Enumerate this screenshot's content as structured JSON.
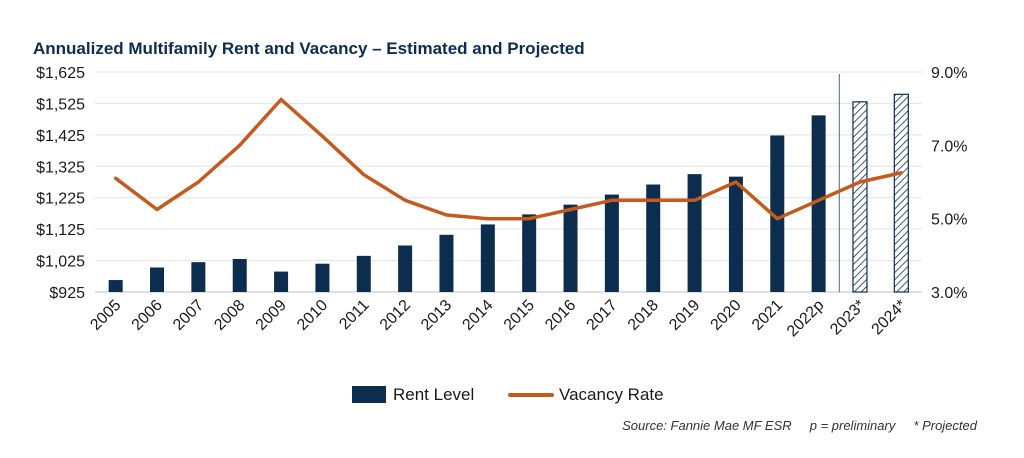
{
  "chart_data": {
    "type": "bar",
    "title": "Annualized Multifamily Rent and Vacancy – Estimated and Projected",
    "categories": [
      "2005",
      "2006",
      "2007",
      "2008",
      "2009",
      "2010",
      "2011",
      "2012",
      "2013",
      "2014",
      "2015",
      "2016",
      "2017",
      "2018",
      "2019",
      "2020",
      "2021",
      "2022p",
      "2023*",
      "2024*"
    ],
    "y_left": {
      "min": 925,
      "max": 1625,
      "ticks": [
        "$925",
        "$1,025",
        "$1,125",
        "$1,225",
        "$1,325",
        "$1,425",
        "$1,525",
        "$1,625"
      ]
    },
    "y_right": {
      "min": 3.0,
      "max": 9.0,
      "ticks": [
        "3.0%",
        "5.0%",
        "7.0%",
        "9.0%"
      ]
    },
    "series": [
      {
        "name": "Rent Level",
        "kind": "bar",
        "axis": "left",
        "color": "#0d2d4f",
        "values": [
          963,
          1003,
          1020,
          1030,
          990,
          1015,
          1040,
          1073,
          1107,
          1140,
          1172,
          1203,
          1235,
          1267,
          1300,
          1292,
          1423,
          1487,
          1530,
          1554
        ],
        "projected": [
          false,
          false,
          false,
          false,
          false,
          false,
          false,
          false,
          false,
          false,
          false,
          false,
          false,
          false,
          false,
          false,
          false,
          false,
          true,
          true
        ]
      },
      {
        "name": "Vacancy Rate",
        "kind": "line",
        "axis": "right",
        "color": "#c55a1e",
        "values": [
          6.1,
          5.25,
          6.0,
          7.0,
          8.25,
          7.25,
          6.2,
          5.5,
          5.1,
          5.0,
          5.0,
          5.25,
          5.5,
          5.5,
          5.5,
          6.0,
          5.0,
          5.5,
          6.0,
          6.25
        ]
      }
    ],
    "divider_after": "2022p",
    "legend": {
      "placement": "bottom-center"
    },
    "footnote": "Source: Fannie Mae MF ESR     p = preliminary     * Projected",
    "grid": true
  }
}
